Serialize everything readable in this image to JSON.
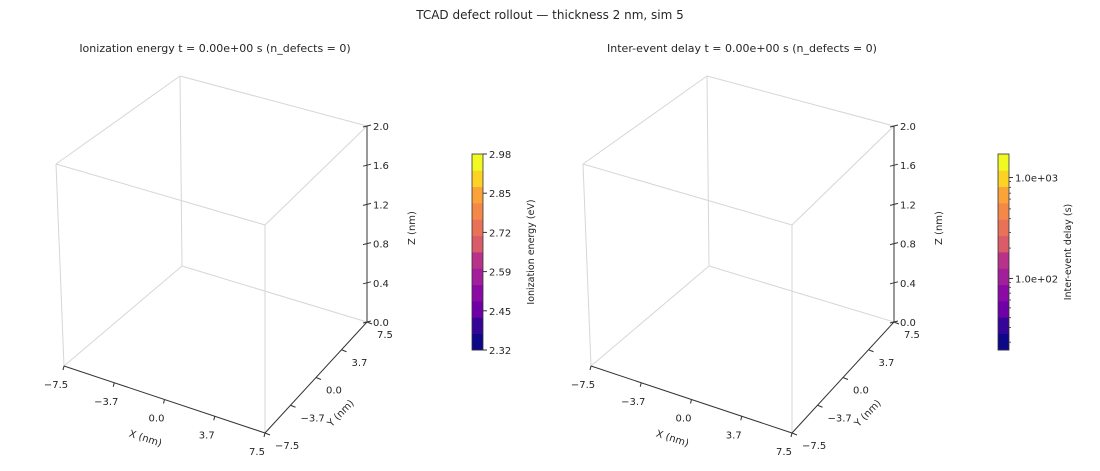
{
  "figure": {
    "suptitle": "TCAD defect rollout — thickness 2 nm, sim 5"
  },
  "chart_data": [
    {
      "type": "scatter",
      "title": "Ionization energy  t = 0.00e+00 s  (n_defects = 0)",
      "xlabel": "X (nm)",
      "ylabel": "Y (nm)",
      "zlabel": "Z (nm)",
      "xlim": [
        -7.5,
        7.5
      ],
      "ylim": [
        -7.5,
        7.5
      ],
      "zlim": [
        0,
        2
      ],
      "x_ticks": [
        "−7.5",
        "−3.7",
        "0.0",
        "3.7",
        "7.5"
      ],
      "y_ticks": [
        "−7.5",
        "−3.7",
        "0.0",
        "3.7",
        "7.5"
      ],
      "z_ticks": [
        "0.0",
        "0.4",
        "0.8",
        "1.2",
        "1.6",
        "2.0"
      ],
      "points": [],
      "colorbar": {
        "label": "Ionization energy (eV)",
        "scale": "linear",
        "min": 2.32,
        "max": 2.98,
        "levels": 12,
        "ticks": [
          "2.32",
          "2.45",
          "2.59",
          "2.72",
          "2.85",
          "2.98"
        ],
        "colormap": "plasma"
      }
    },
    {
      "type": "scatter",
      "title": "Inter-event delay  t = 0.00e+00 s  (n_defects = 0)",
      "xlabel": "X (nm)",
      "ylabel": "Y (nm)",
      "zlabel": "Z (nm)",
      "xlim": [
        -7.5,
        7.5
      ],
      "ylim": [
        -7.5,
        7.5
      ],
      "zlim": [
        0,
        2
      ],
      "x_ticks": [
        "−7.5",
        "−3.7",
        "0.0",
        "3.7",
        "7.5"
      ],
      "y_ticks": [
        "−7.5",
        "−3.7",
        "0.0",
        "3.7",
        "7.5"
      ],
      "z_ticks": [
        "0.0",
        "0.4",
        "0.8",
        "1.2",
        "1.6",
        "2.0"
      ],
      "points": [],
      "colorbar": {
        "label": "Inter-event delay (s)",
        "scale": "log",
        "levels": 12,
        "ticks": [
          "1.0e+02",
          "1.0e+03"
        ],
        "colormap": "plasma"
      }
    }
  ]
}
